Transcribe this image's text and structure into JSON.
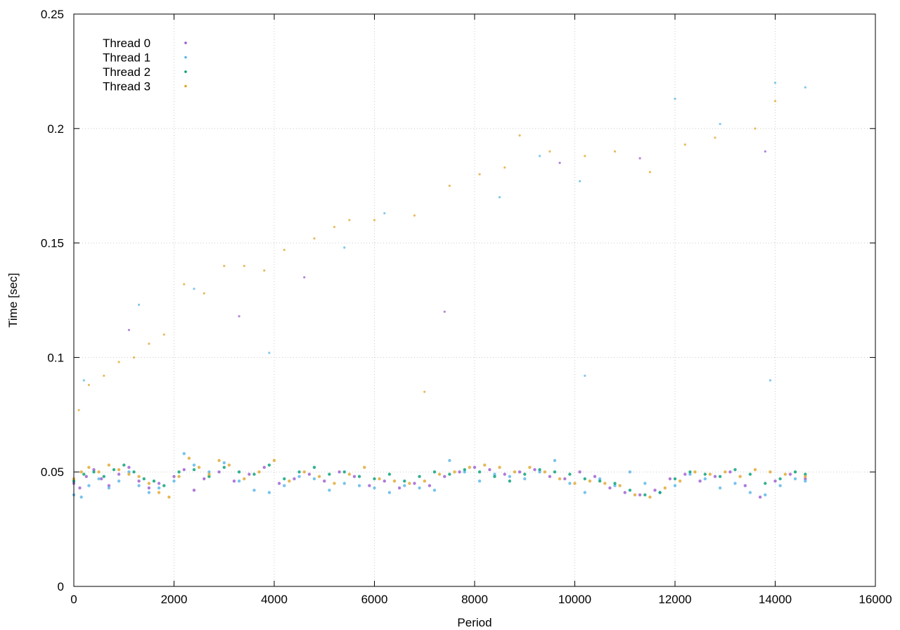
{
  "chart_data": {
    "type": "scatter",
    "xlabel": "Period",
    "ylabel": "Time [sec]",
    "xlim": [
      0,
      16000
    ],
    "ylim": [
      0,
      0.25
    ],
    "x_ticks": [
      "0",
      "2000",
      "4000",
      "6000",
      "8000",
      "10000",
      "12000",
      "14000",
      "16000"
    ],
    "y_ticks": [
      "0",
      "0.05",
      "0.1",
      "0.15",
      "0.2",
      "0.25"
    ],
    "grid": true,
    "legend_position": "top-left",
    "series": [
      {
        "name": "Thread 0",
        "color": "#9b59d0",
        "points": [
          [
            0,
            0.045
          ],
          [
            120,
            0.043
          ],
          [
            250,
            0.048
          ],
          [
            400,
            0.051
          ],
          [
            550,
            0.047
          ],
          [
            700,
            0.044
          ],
          [
            900,
            0.049
          ],
          [
            1100,
            0.052
          ],
          [
            1300,
            0.046
          ],
          [
            1500,
            0.043
          ],
          [
            1700,
            0.045
          ],
          [
            2000,
            0.048
          ],
          [
            2200,
            0.051
          ],
          [
            2400,
            0.042
          ],
          [
            2600,
            0.047
          ],
          [
            2900,
            0.05
          ],
          [
            3200,
            0.046
          ],
          [
            3500,
            0.049
          ],
          [
            3800,
            0.052
          ],
          [
            4100,
            0.045
          ],
          [
            4400,
            0.047
          ],
          [
            4700,
            0.049
          ],
          [
            5000,
            0.046
          ],
          [
            5300,
            0.05
          ],
          [
            5600,
            0.048
          ],
          [
            5900,
            0.044
          ],
          [
            6200,
            0.046
          ],
          [
            6500,
            0.043
          ],
          [
            6800,
            0.045
          ],
          [
            7100,
            0.044
          ],
          [
            7400,
            0.048
          ],
          [
            7700,
            0.05
          ],
          [
            8000,
            0.052
          ],
          [
            8300,
            0.051
          ],
          [
            8600,
            0.049
          ],
          [
            8900,
            0.05
          ],
          [
            9200,
            0.051
          ],
          [
            9500,
            0.048
          ],
          [
            9800,
            0.047
          ],
          [
            10100,
            0.05
          ],
          [
            10400,
            0.048
          ],
          [
            10700,
            0.043
          ],
          [
            11000,
            0.041
          ],
          [
            11300,
            0.04
          ],
          [
            11600,
            0.042
          ],
          [
            11900,
            0.047
          ],
          [
            12200,
            0.049
          ],
          [
            12500,
            0.046
          ],
          [
            12800,
            0.048
          ],
          [
            13100,
            0.05
          ],
          [
            13400,
            0.044
          ],
          [
            13700,
            0.039
          ],
          [
            14000,
            0.046
          ],
          [
            14300,
            0.049
          ],
          [
            14600,
            0.047
          ]
        ]
      },
      {
        "name": "Thread 1",
        "color": "#56b4e9",
        "points": [
          [
            0,
            0.04
          ],
          [
            150,
            0.039
          ],
          [
            300,
            0.044
          ],
          [
            500,
            0.047
          ],
          [
            700,
            0.043
          ],
          [
            900,
            0.046
          ],
          [
            1100,
            0.05
          ],
          [
            1300,
            0.044
          ],
          [
            1500,
            0.041
          ],
          [
            1700,
            0.043
          ],
          [
            2000,
            0.046
          ],
          [
            2200,
            0.058
          ],
          [
            2400,
            0.053
          ],
          [
            2700,
            0.05
          ],
          [
            3000,
            0.054
          ],
          [
            3300,
            0.046
          ],
          [
            3600,
            0.042
          ],
          [
            3900,
            0.041
          ],
          [
            4200,
            0.044
          ],
          [
            4500,
            0.048
          ],
          [
            4800,
            0.047
          ],
          [
            5100,
            0.042
          ],
          [
            5400,
            0.045
          ],
          [
            5700,
            0.044
          ],
          [
            6000,
            0.043
          ],
          [
            6300,
            0.041
          ],
          [
            6600,
            0.044
          ],
          [
            6900,
            0.043
          ],
          [
            7200,
            0.042
          ],
          [
            7500,
            0.055
          ],
          [
            7800,
            0.05
          ],
          [
            8100,
            0.046
          ],
          [
            8400,
            0.049
          ],
          [
            8700,
            0.048
          ],
          [
            9000,
            0.047
          ],
          [
            9300,
            0.05
          ],
          [
            9600,
            0.055
          ],
          [
            9900,
            0.045
          ],
          [
            10200,
            0.041
          ],
          [
            10500,
            0.047
          ],
          [
            10800,
            0.044
          ],
          [
            11100,
            0.05
          ],
          [
            11400,
            0.045
          ],
          [
            11700,
            0.041
          ],
          [
            12000,
            0.044
          ],
          [
            12300,
            0.049
          ],
          [
            12600,
            0.047
          ],
          [
            12900,
            0.043
          ],
          [
            13200,
            0.045
          ],
          [
            13500,
            0.041
          ],
          [
            13800,
            0.04
          ],
          [
            14100,
            0.044
          ],
          [
            14400,
            0.047
          ],
          [
            14600,
            0.046
          ]
        ]
      },
      {
        "name": "Thread 2",
        "color": "#009e73",
        "points": [
          [
            0,
            0.046
          ],
          [
            200,
            0.049
          ],
          [
            400,
            0.05
          ],
          [
            600,
            0.048
          ],
          [
            800,
            0.051
          ],
          [
            1000,
            0.053
          ],
          [
            1200,
            0.05
          ],
          [
            1400,
            0.047
          ],
          [
            1600,
            0.046
          ],
          [
            1800,
            0.044
          ],
          [
            2100,
            0.05
          ],
          [
            2400,
            0.051
          ],
          [
            2700,
            0.048
          ],
          [
            3000,
            0.052
          ],
          [
            3300,
            0.05
          ],
          [
            3600,
            0.049
          ],
          [
            3900,
            0.053
          ],
          [
            4200,
            0.047
          ],
          [
            4500,
            0.05
          ],
          [
            4800,
            0.052
          ],
          [
            5100,
            0.049
          ],
          [
            5400,
            0.05
          ],
          [
            5700,
            0.048
          ],
          [
            6000,
            0.047
          ],
          [
            6300,
            0.049
          ],
          [
            6600,
            0.046
          ],
          [
            6900,
            0.048
          ],
          [
            7200,
            0.05
          ],
          [
            7500,
            0.049
          ],
          [
            7800,
            0.051
          ],
          [
            8100,
            0.05
          ],
          [
            8400,
            0.048
          ],
          [
            8700,
            0.046
          ],
          [
            9000,
            0.049
          ],
          [
            9300,
            0.051
          ],
          [
            9600,
            0.05
          ],
          [
            9900,
            0.049
          ],
          [
            10200,
            0.047
          ],
          [
            10500,
            0.046
          ],
          [
            10800,
            0.045
          ],
          [
            11100,
            0.042
          ],
          [
            11400,
            0.04
          ],
          [
            11700,
            0.041
          ],
          [
            12000,
            0.047
          ],
          [
            12300,
            0.05
          ],
          [
            12600,
            0.049
          ],
          [
            12900,
            0.048
          ],
          [
            13200,
            0.051
          ],
          [
            13500,
            0.049
          ],
          [
            13800,
            0.045
          ],
          [
            14100,
            0.047
          ],
          [
            14400,
            0.05
          ],
          [
            14600,
            0.049
          ]
        ]
      },
      {
        "name": "Thread 3",
        "color": "#e0a52b",
        "points": [
          [
            0,
            0.047
          ],
          [
            150,
            0.05
          ],
          [
            300,
            0.052
          ],
          [
            500,
            0.05
          ],
          [
            700,
            0.053
          ],
          [
            900,
            0.051
          ],
          [
            1100,
            0.049
          ],
          [
            1300,
            0.048
          ],
          [
            1500,
            0.045
          ],
          [
            1700,
            0.041
          ],
          [
            1900,
            0.039
          ],
          [
            2100,
            0.048
          ],
          [
            2300,
            0.056
          ],
          [
            2500,
            0.052
          ],
          [
            2700,
            0.049
          ],
          [
            2900,
            0.055
          ],
          [
            3100,
            0.053
          ],
          [
            3400,
            0.047
          ],
          [
            3700,
            0.05
          ],
          [
            4000,
            0.055
          ],
          [
            4300,
            0.046
          ],
          [
            4600,
            0.05
          ],
          [
            4900,
            0.048
          ],
          [
            5200,
            0.045
          ],
          [
            5500,
            0.049
          ],
          [
            5800,
            0.052
          ],
          [
            6100,
            0.047
          ],
          [
            6400,
            0.046
          ],
          [
            6700,
            0.045
          ],
          [
            7000,
            0.046
          ],
          [
            7300,
            0.049
          ],
          [
            7600,
            0.05
          ],
          [
            7900,
            0.052
          ],
          [
            8200,
            0.053
          ],
          [
            8500,
            0.052
          ],
          [
            8800,
            0.05
          ],
          [
            9100,
            0.052
          ],
          [
            9400,
            0.05
          ],
          [
            9700,
            0.047
          ],
          [
            10000,
            0.045
          ],
          [
            10300,
            0.046
          ],
          [
            10600,
            0.045
          ],
          [
            10900,
            0.044
          ],
          [
            11200,
            0.04
          ],
          [
            11500,
            0.039
          ],
          [
            11800,
            0.043
          ],
          [
            12100,
            0.046
          ],
          [
            12400,
            0.05
          ],
          [
            12700,
            0.049
          ],
          [
            13000,
            0.05
          ],
          [
            13300,
            0.048
          ],
          [
            13600,
            0.051
          ],
          [
            13900,
            0.05
          ],
          [
            14200,
            0.049
          ],
          [
            14600,
            0.048
          ]
        ]
      }
    ],
    "outliers": [
      {
        "series": "Thread 3",
        "points": [
          [
            100,
            0.077
          ],
          [
            300,
            0.088
          ],
          [
            600,
            0.092
          ],
          [
            900,
            0.098
          ],
          [
            1200,
            0.1
          ],
          [
            1500,
            0.106
          ],
          [
            1800,
            0.11
          ],
          [
            2200,
            0.132
          ],
          [
            2600,
            0.128
          ],
          [
            3000,
            0.14
          ],
          [
            3400,
            0.14
          ],
          [
            3800,
            0.138
          ],
          [
            4200,
            0.147
          ],
          [
            4800,
            0.152
          ],
          [
            5200,
            0.157
          ],
          [
            5500,
            0.16
          ],
          [
            6000,
            0.16
          ],
          [
            6800,
            0.162
          ],
          [
            7500,
            0.175
          ],
          [
            8100,
            0.18
          ],
          [
            8600,
            0.183
          ],
          [
            8900,
            0.197
          ],
          [
            9500,
            0.19
          ],
          [
            10200,
            0.188
          ],
          [
            10800,
            0.19
          ],
          [
            11500,
            0.181
          ],
          [
            12200,
            0.193
          ],
          [
            12800,
            0.196
          ],
          [
            13600,
            0.2
          ],
          [
            14000,
            0.212
          ],
          [
            7000,
            0.085
          ]
        ]
      },
      {
        "series": "Thread 1",
        "points": [
          [
            200,
            0.09
          ],
          [
            1300,
            0.123
          ],
          [
            2400,
            0.13
          ],
          [
            3900,
            0.102
          ],
          [
            5400,
            0.148
          ],
          [
            6200,
            0.163
          ],
          [
            8500,
            0.17
          ],
          [
            9300,
            0.188
          ],
          [
            10100,
            0.177
          ],
          [
            12000,
            0.213
          ],
          [
            12900,
            0.202
          ],
          [
            14000,
            0.22
          ],
          [
            14600,
            0.218
          ],
          [
            13900,
            0.09
          ],
          [
            10200,
            0.092
          ]
        ]
      },
      {
        "series": "Thread 0",
        "points": [
          [
            1100,
            0.112
          ],
          [
            3300,
            0.118
          ],
          [
            4600,
            0.135
          ],
          [
            7400,
            0.12
          ],
          [
            9700,
            0.185
          ],
          [
            11300,
            0.187
          ],
          [
            13800,
            0.19
          ]
        ]
      }
    ]
  }
}
